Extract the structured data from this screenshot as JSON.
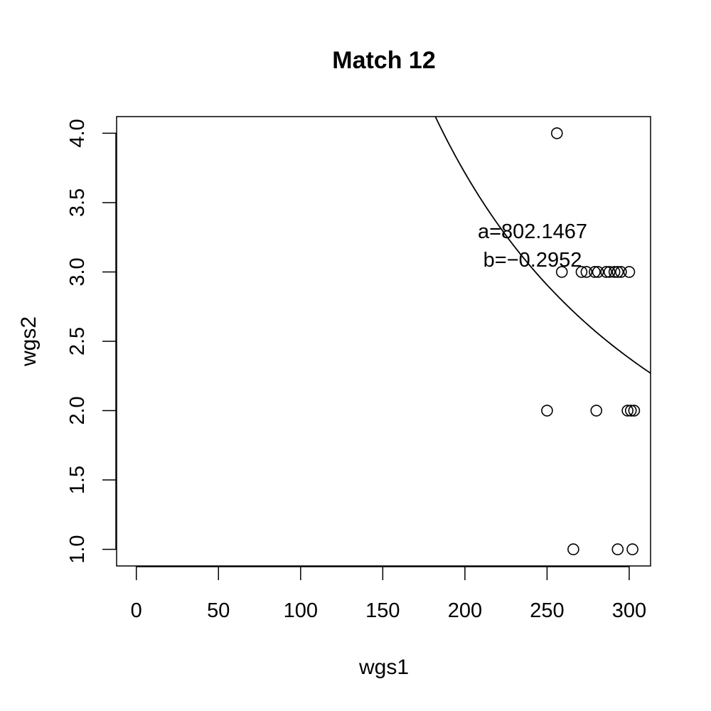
{
  "chart_data": {
    "type": "scatter",
    "title": "Match 12",
    "xlabel": "wgs1",
    "ylabel": "wgs2",
    "xlim": [
      -12,
      313
    ],
    "ylim": [
      0.88,
      4.12
    ],
    "x_ticks": [
      0,
      50,
      100,
      150,
      200,
      250,
      300
    ],
    "x_tick_labels": [
      "0",
      "50",
      "100",
      "150",
      "200",
      "250",
      "300"
    ],
    "y_ticks": [
      1.0,
      1.5,
      2.0,
      2.5,
      3.0,
      3.5,
      4.0
    ],
    "y_tick_labels": [
      "1.0",
      "1.5",
      "2.0",
      "2.5",
      "3.0",
      "3.5",
      "4.0"
    ],
    "grid": false,
    "points": [
      {
        "x": 256,
        "y": 4
      },
      {
        "x": 259,
        "y": 3
      },
      {
        "x": 271,
        "y": 3
      },
      {
        "x": 274,
        "y": 3
      },
      {
        "x": 279,
        "y": 3
      },
      {
        "x": 281,
        "y": 3
      },
      {
        "x": 286,
        "y": 3
      },
      {
        "x": 288,
        "y": 3
      },
      {
        "x": 291,
        "y": 3
      },
      {
        "x": 293,
        "y": 3
      },
      {
        "x": 295,
        "y": 3
      },
      {
        "x": 300,
        "y": 3
      },
      {
        "x": 250,
        "y": 2
      },
      {
        "x": 280,
        "y": 2
      },
      {
        "x": 299,
        "y": 2
      },
      {
        "x": 301,
        "y": 2
      },
      {
        "x": 303,
        "y": 2
      },
      {
        "x": 266,
        "y": 1
      },
      {
        "x": 293,
        "y": 1
      },
      {
        "x": 302,
        "y": 1
      }
    ],
    "fit_curve": {
      "model": "y = a * x^b",
      "a": 802.1467,
      "b": -0.2952,
      "x_range": [
        182,
        313
      ]
    },
    "annotations": [
      "a=802.1467",
      "b=−0.2952"
    ]
  }
}
